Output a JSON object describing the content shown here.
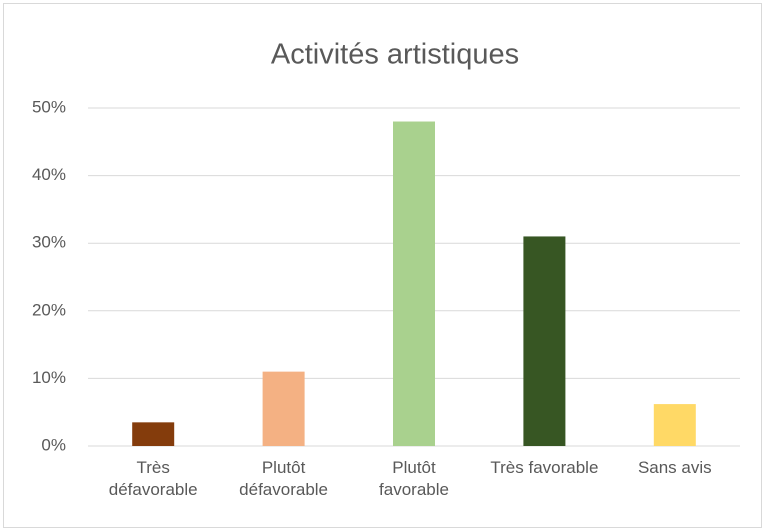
{
  "chart_data": {
    "type": "bar",
    "title": "Activités artistiques",
    "categories": [
      "Très défavorable",
      "Plutôt défavorable",
      "Plutôt favorable",
      "Très favorable",
      "Sans avis"
    ],
    "values": [
      3.5,
      11,
      48,
      31,
      6.2
    ],
    "colors": [
      "#843c0c",
      "#f4b183",
      "#a9d18e",
      "#375623",
      "#ffd966"
    ],
    "ylim": [
      0,
      50
    ],
    "yticks": [
      {
        "value": 0,
        "label": "0%"
      },
      {
        "value": 10,
        "label": "10%"
      },
      {
        "value": 20,
        "label": "20%"
      },
      {
        "value": 30,
        "label": "30%"
      },
      {
        "value": 40,
        "label": "40%"
      },
      {
        "value": 50,
        "label": "50%"
      }
    ],
    "grid": true
  }
}
